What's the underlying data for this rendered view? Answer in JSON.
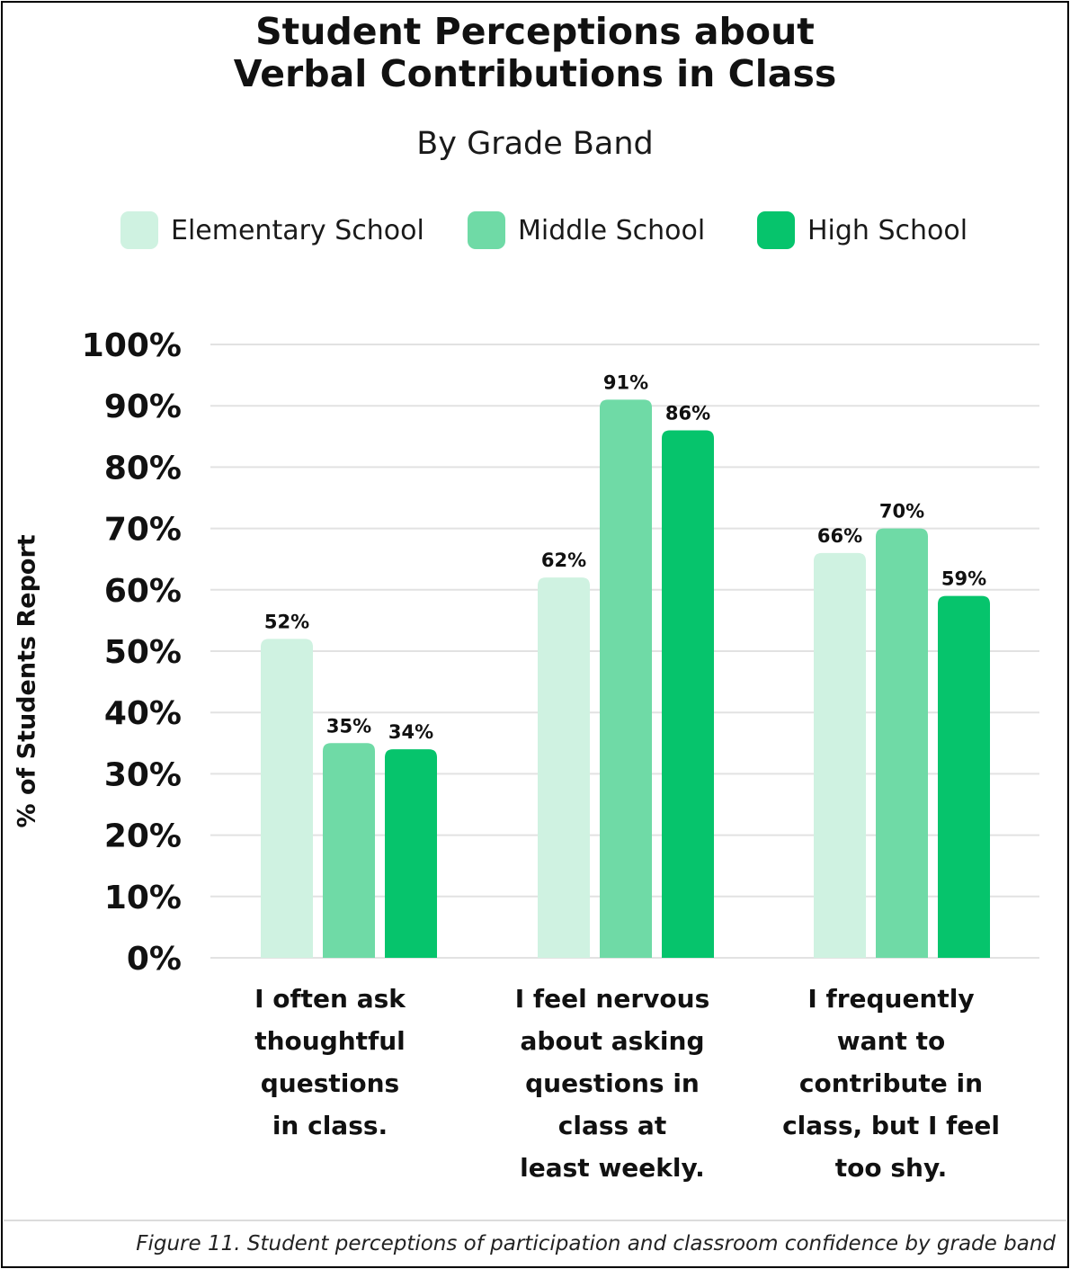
{
  "title_lines": [
    "Student Perceptions about",
    "Verbal Contributions in Class"
  ],
  "subtitle": "By Grade Band",
  "caption": "Figure 11. Student perceptions of participation and classroom confidence by grade band",
  "chart_data": {
    "type": "bar",
    "title": "Student Perceptions about Verbal Contributions in Class",
    "subtitle": "By Grade Band",
    "ylabel": "% of Students Report",
    "xlabel": "",
    "ylim": [
      0,
      100
    ],
    "yticks": [
      "0%",
      "10%",
      "20%",
      "30%",
      "40%",
      "50%",
      "60%",
      "70%",
      "80%",
      "90%",
      "100%"
    ],
    "grid": true,
    "legend_position": "top",
    "categories": [
      "I often ask\nthoughtful\nquestions\nin class.",
      "I feel nervous\nabout asking\nquestions in\nclass at\nleast weekly.",
      "I frequently\nwant to\ncontribute in\nclass, but I feel\ntoo shy."
    ],
    "series": [
      {
        "name": "Elementary School",
        "color": "#cff2e1",
        "values": [
          52,
          62,
          66
        ],
        "labels": [
          "52%",
          "62%",
          "66%"
        ]
      },
      {
        "name": "Middle School",
        "color": "#6fdaa6",
        "values": [
          35,
          91,
          70
        ],
        "labels": [
          "35%",
          "91%",
          "70%"
        ]
      },
      {
        "name": "High School",
        "color": "#06c46c",
        "values": [
          34,
          86,
          59
        ],
        "labels": [
          "34%",
          "86%",
          "59%"
        ]
      }
    ]
  }
}
